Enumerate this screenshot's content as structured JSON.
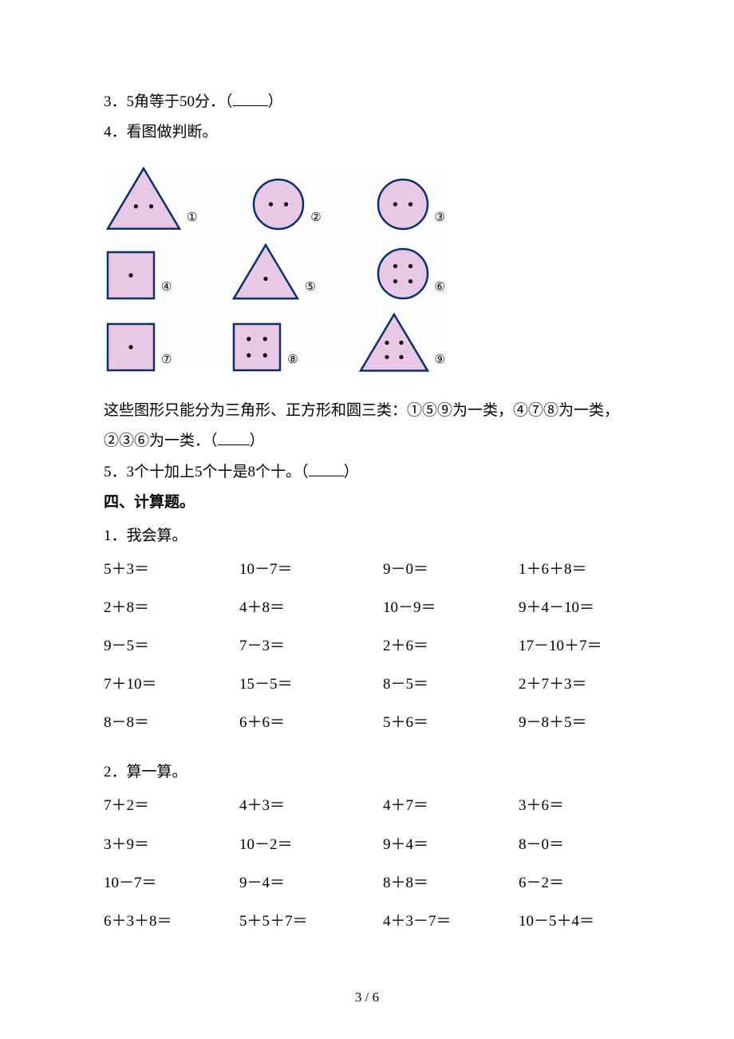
{
  "colors": {
    "shape_fill": "#e9c8e5",
    "shape_stroke": "#0c2f6b",
    "enum_stroke": "#000000",
    "text": "#000000",
    "bg": "#ffffff"
  },
  "q3": {
    "num": "3．",
    "text": "5角等于50分．（",
    "close": "）",
    "blank_width": 44
  },
  "q4": {
    "num": "4．",
    "text": "看图做判断。"
  },
  "shapes": {
    "rows": [
      [
        {
          "type": "triangle",
          "dots": 2,
          "size": 96,
          "enum": "①"
        },
        {
          "type": "circle",
          "dots": 2,
          "size": 68,
          "enum": "②"
        },
        {
          "type": "circle",
          "dots": 2,
          "size": 68,
          "enum": "③"
        }
      ],
      [
        {
          "type": "square",
          "dots": 1,
          "size": 64,
          "enum": "④"
        },
        {
          "type": "triangle",
          "dots": 1,
          "size": 86,
          "enum": "⑤"
        },
        {
          "type": "circle",
          "dots": 4,
          "size": 68,
          "enum": "⑥"
        }
      ],
      [
        {
          "type": "square",
          "dots": 1,
          "size": 64,
          "enum": "⑦"
        },
        {
          "type": "square",
          "dots": 4,
          "size": 64,
          "enum": "⑧"
        },
        {
          "type": "triangle",
          "dots": 4,
          "size": 90,
          "enum": "⑨"
        }
      ]
    ]
  },
  "q4_desc": {
    "line1": "这些图形只能分为三角形、正方形和圆三类：①⑤⑨为一类，④⑦⑧为一类，",
    "line2_a": "②③⑥为一类．（",
    "line2_b": "）",
    "blank_width": 40
  },
  "q5": {
    "num": "5．",
    "text_a": "3个十加上5个十是8个十。（",
    "text_b": "）",
    "blank_width": 44
  },
  "section4": {
    "heading": "四、计算题。"
  },
  "calc1": {
    "title_num": "1．",
    "title_text": "我会算。",
    "rows": [
      [
        "5＋3＝",
        "10－7＝",
        "9－0＝",
        "1＋6＋8＝"
      ],
      [
        "2＋8＝",
        "4＋8＝",
        "10－9＝",
        "9＋4－10＝"
      ],
      [
        "9－5＝",
        "7－3＝",
        "2＋6＝",
        "17－10＋7＝"
      ],
      [
        "7＋10＝",
        "15－5＝",
        "8－5＝",
        "2＋7＋3＝"
      ],
      [
        "8－8＝",
        "6＋6＝",
        "5＋6＝",
        "9－8＋5＝"
      ]
    ]
  },
  "calc2": {
    "title_num": "2．",
    "title_text": "算一算。",
    "rows": [
      [
        "7＋2＝",
        "4＋3＝",
        "4＋7＝",
        "3＋6＝"
      ],
      [
        "3＋9＝",
        "10－2＝",
        "9＋4＝",
        "8－0＝"
      ],
      [
        "10－7＝",
        "9－4＝",
        "8＋8＝",
        "6－2＝"
      ],
      [
        "6＋3＋8＝",
        "5＋5＋7＝",
        "4＋3－7＝",
        "10－5＋4＝"
      ]
    ]
  },
  "page_num": "3 / 6"
}
